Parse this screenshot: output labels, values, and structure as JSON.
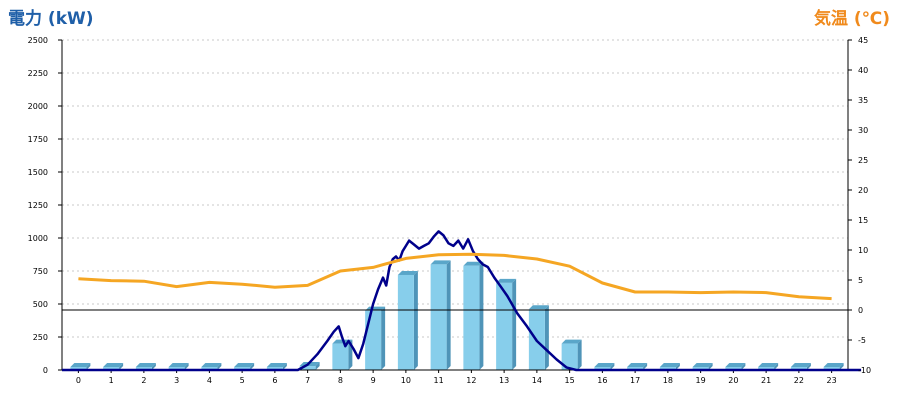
{
  "chart_data": {
    "type": "bar",
    "left_axis_title": "電力 (kW)",
    "right_axis_title": "気温 (℃)",
    "categories": [
      "0",
      "1",
      "2",
      "3",
      "4",
      "5",
      "6",
      "7",
      "8",
      "9",
      "10",
      "11",
      "12",
      "13",
      "14",
      "15",
      "16",
      "17",
      "18",
      "19",
      "20",
      "21",
      "22",
      "23"
    ],
    "ylim_left": [
      0,
      2500
    ],
    "yticks_left": [
      0,
      250,
      500,
      750,
      1000,
      1250,
      1500,
      1750,
      2000,
      2250,
      2500
    ],
    "ylim_right": [
      -10,
      45
    ],
    "yticks_right": [
      -10,
      -5,
      0,
      5,
      10,
      15,
      20,
      25,
      30,
      35,
      40,
      45
    ],
    "grid": "horizontal dotted",
    "colors": {
      "bars": "#87ceeb",
      "power_line": "#00008b",
      "temperature_line": "#f5a623",
      "zero_line": "#000000",
      "left_title": "#1f5fa8",
      "right_title": "#f08a1c"
    },
    "series": [
      {
        "kind": "bar",
        "axis": "left",
        "values": [
          0,
          0,
          0,
          0,
          0,
          0,
          0,
          30,
          200,
          450,
          720,
          800,
          790,
          660,
          460,
          200,
          0,
          0,
          0,
          0,
          0,
          0,
          0,
          0
        ]
      },
      {
        "kind": "line",
        "axis": "left",
        "x": [
          6.7,
          7.0,
          7.3,
          7.6,
          7.8,
          7.95,
          8.05,
          8.15,
          8.25,
          8.4,
          8.55,
          8.7,
          8.85,
          9.0,
          9.15,
          9.3,
          9.4,
          9.5,
          9.6,
          9.7,
          9.8,
          9.9,
          10.0,
          10.1,
          10.25,
          10.4,
          10.55,
          10.7,
          10.85,
          11.0,
          11.15,
          11.3,
          11.45,
          11.6,
          11.75,
          11.9,
          12.05,
          12.2,
          12.35,
          12.5,
          12.7,
          12.9,
          13.1,
          13.4,
          13.7,
          14.0,
          14.3,
          14.6,
          14.9,
          15.2,
          15.5,
          15.8,
          16.0,
          16.3,
          16.6,
          23.9
        ],
        "values": [
          0,
          40,
          120,
          220,
          290,
          330,
          250,
          180,
          220,
          160,
          90,
          200,
          350,
          500,
          610,
          700,
          640,
          780,
          840,
          860,
          830,
          900,
          940,
          980,
          950,
          920,
          940,
          960,
          1010,
          1050,
          1020,
          960,
          940,
          980,
          920,
          990,
          900,
          840,
          800,
          780,
          700,
          630,
          560,
          430,
          330,
          220,
          150,
          80,
          20,
          0,
          0,
          0,
          0,
          0,
          0,
          0
        ]
      },
      {
        "kind": "line",
        "axis": "right",
        "x": [
          0,
          1,
          2,
          3,
          4,
          5,
          6,
          7,
          8,
          9,
          10,
          11,
          12,
          13,
          14,
          15,
          16,
          17,
          18,
          19,
          20,
          21,
          22,
          23
        ],
        "values": [
          5.2,
          4.9,
          4.8,
          3.9,
          4.6,
          4.3,
          3.8,
          4.1,
          6.5,
          7.1,
          8.6,
          9.2,
          9.3,
          9.1,
          8.5,
          7.3,
          4.5,
          3.0,
          3.0,
          2.9,
          3.0,
          2.9,
          2.2,
          1.9
        ]
      }
    ]
  }
}
